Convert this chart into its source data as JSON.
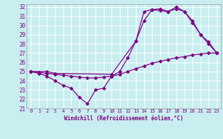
{
  "xlabel": "Windchill (Refroidissement éolien,°C)",
  "bg_color": "#c8eef0",
  "line_color": "#800080",
  "xlim": [
    -0.5,
    23.5
  ],
  "ylim": [
    21,
    32.3
  ],
  "yticks": [
    21,
    22,
    23,
    24,
    25,
    26,
    27,
    28,
    29,
    30,
    31,
    32
  ],
  "xticks": [
    0,
    1,
    2,
    3,
    4,
    5,
    6,
    7,
    8,
    9,
    10,
    11,
    12,
    13,
    14,
    15,
    16,
    17,
    18,
    19,
    20,
    21,
    22,
    23
  ],
  "series": [
    {
      "x": [
        0,
        1,
        2,
        3,
        4,
        5,
        6,
        7,
        8,
        9,
        10,
        11,
        12,
        13,
        14,
        15,
        16,
        17,
        18,
        19,
        20,
        21,
        22,
        23
      ],
      "y": [
        25.0,
        24.8,
        24.5,
        24.0,
        23.5,
        23.2,
        22.2,
        21.5,
        23.0,
        23.2,
        24.5,
        25.0,
        26.5,
        28.3,
        30.5,
        31.7,
        31.8,
        31.5,
        32.0,
        31.5,
        30.3,
        29.0,
        28.2,
        27.0
      ]
    },
    {
      "x": [
        0,
        2,
        3,
        10,
        13,
        14,
        15,
        16,
        17,
        18,
        19,
        20,
        21,
        22,
        23
      ],
      "y": [
        25.0,
        25.0,
        24.8,
        24.7,
        28.3,
        31.5,
        31.7,
        31.6,
        31.5,
        31.8,
        31.5,
        30.5,
        29.0,
        28.0,
        27.0
      ]
    },
    {
      "x": [
        0,
        1,
        2,
        3,
        4,
        5,
        6,
        7,
        8,
        9,
        10,
        11,
        12,
        13,
        14,
        15,
        16,
        17,
        18,
        19,
        20,
        21,
        22,
        23
      ],
      "y": [
        25.0,
        24.9,
        24.8,
        24.7,
        24.6,
        24.5,
        24.4,
        24.3,
        24.3,
        24.4,
        24.5,
        24.7,
        25.0,
        25.3,
        25.6,
        25.9,
        26.1,
        26.3,
        26.5,
        26.6,
        26.8,
        26.9,
        27.0,
        27.0
      ]
    }
  ]
}
